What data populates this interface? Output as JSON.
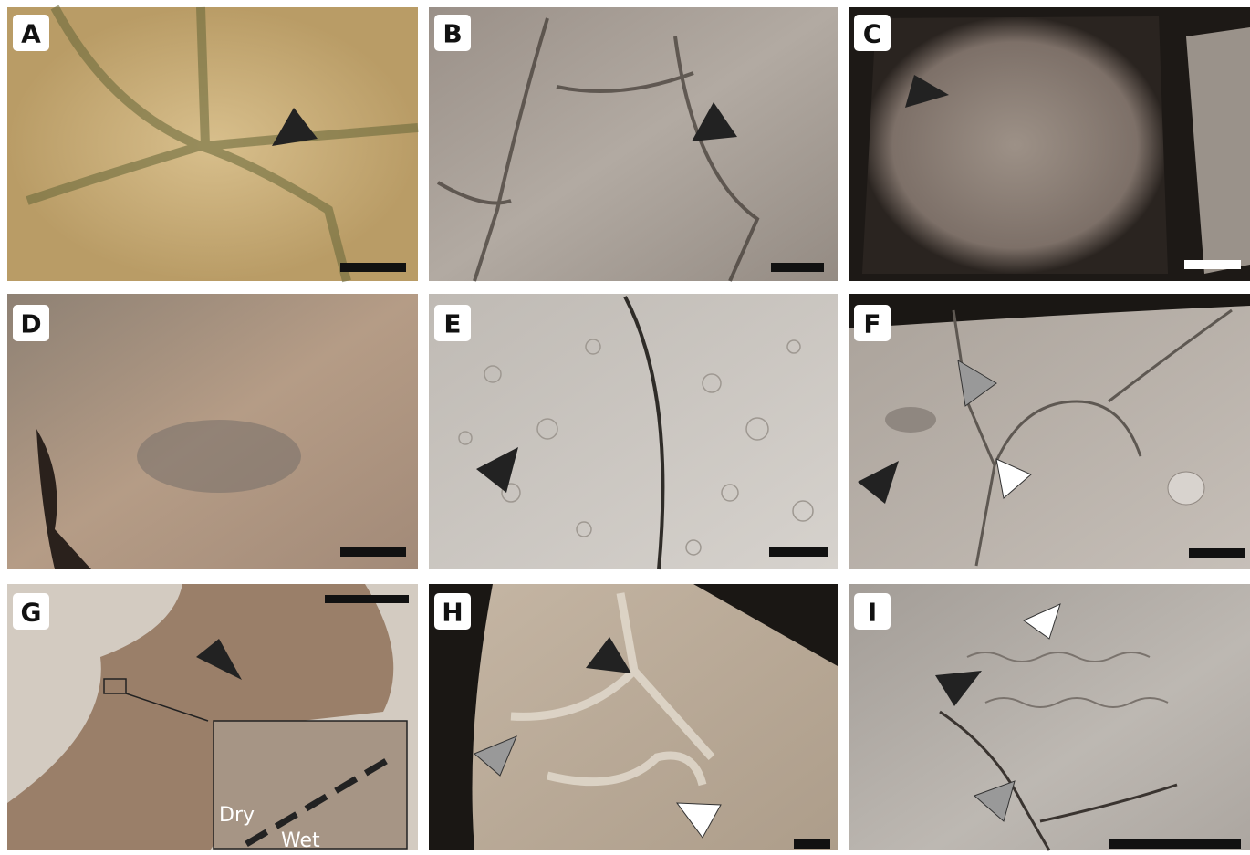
{
  "panels": [
    {
      "label": "A"
    },
    {
      "label": "B"
    },
    {
      "label": "C"
    },
    {
      "label": "D"
    },
    {
      "label": "E"
    },
    {
      "label": "F"
    },
    {
      "label": "G"
    },
    {
      "label": "H"
    },
    {
      "label": "I"
    }
  ],
  "inset": {
    "dry": "Dry",
    "wet": "Wet"
  }
}
